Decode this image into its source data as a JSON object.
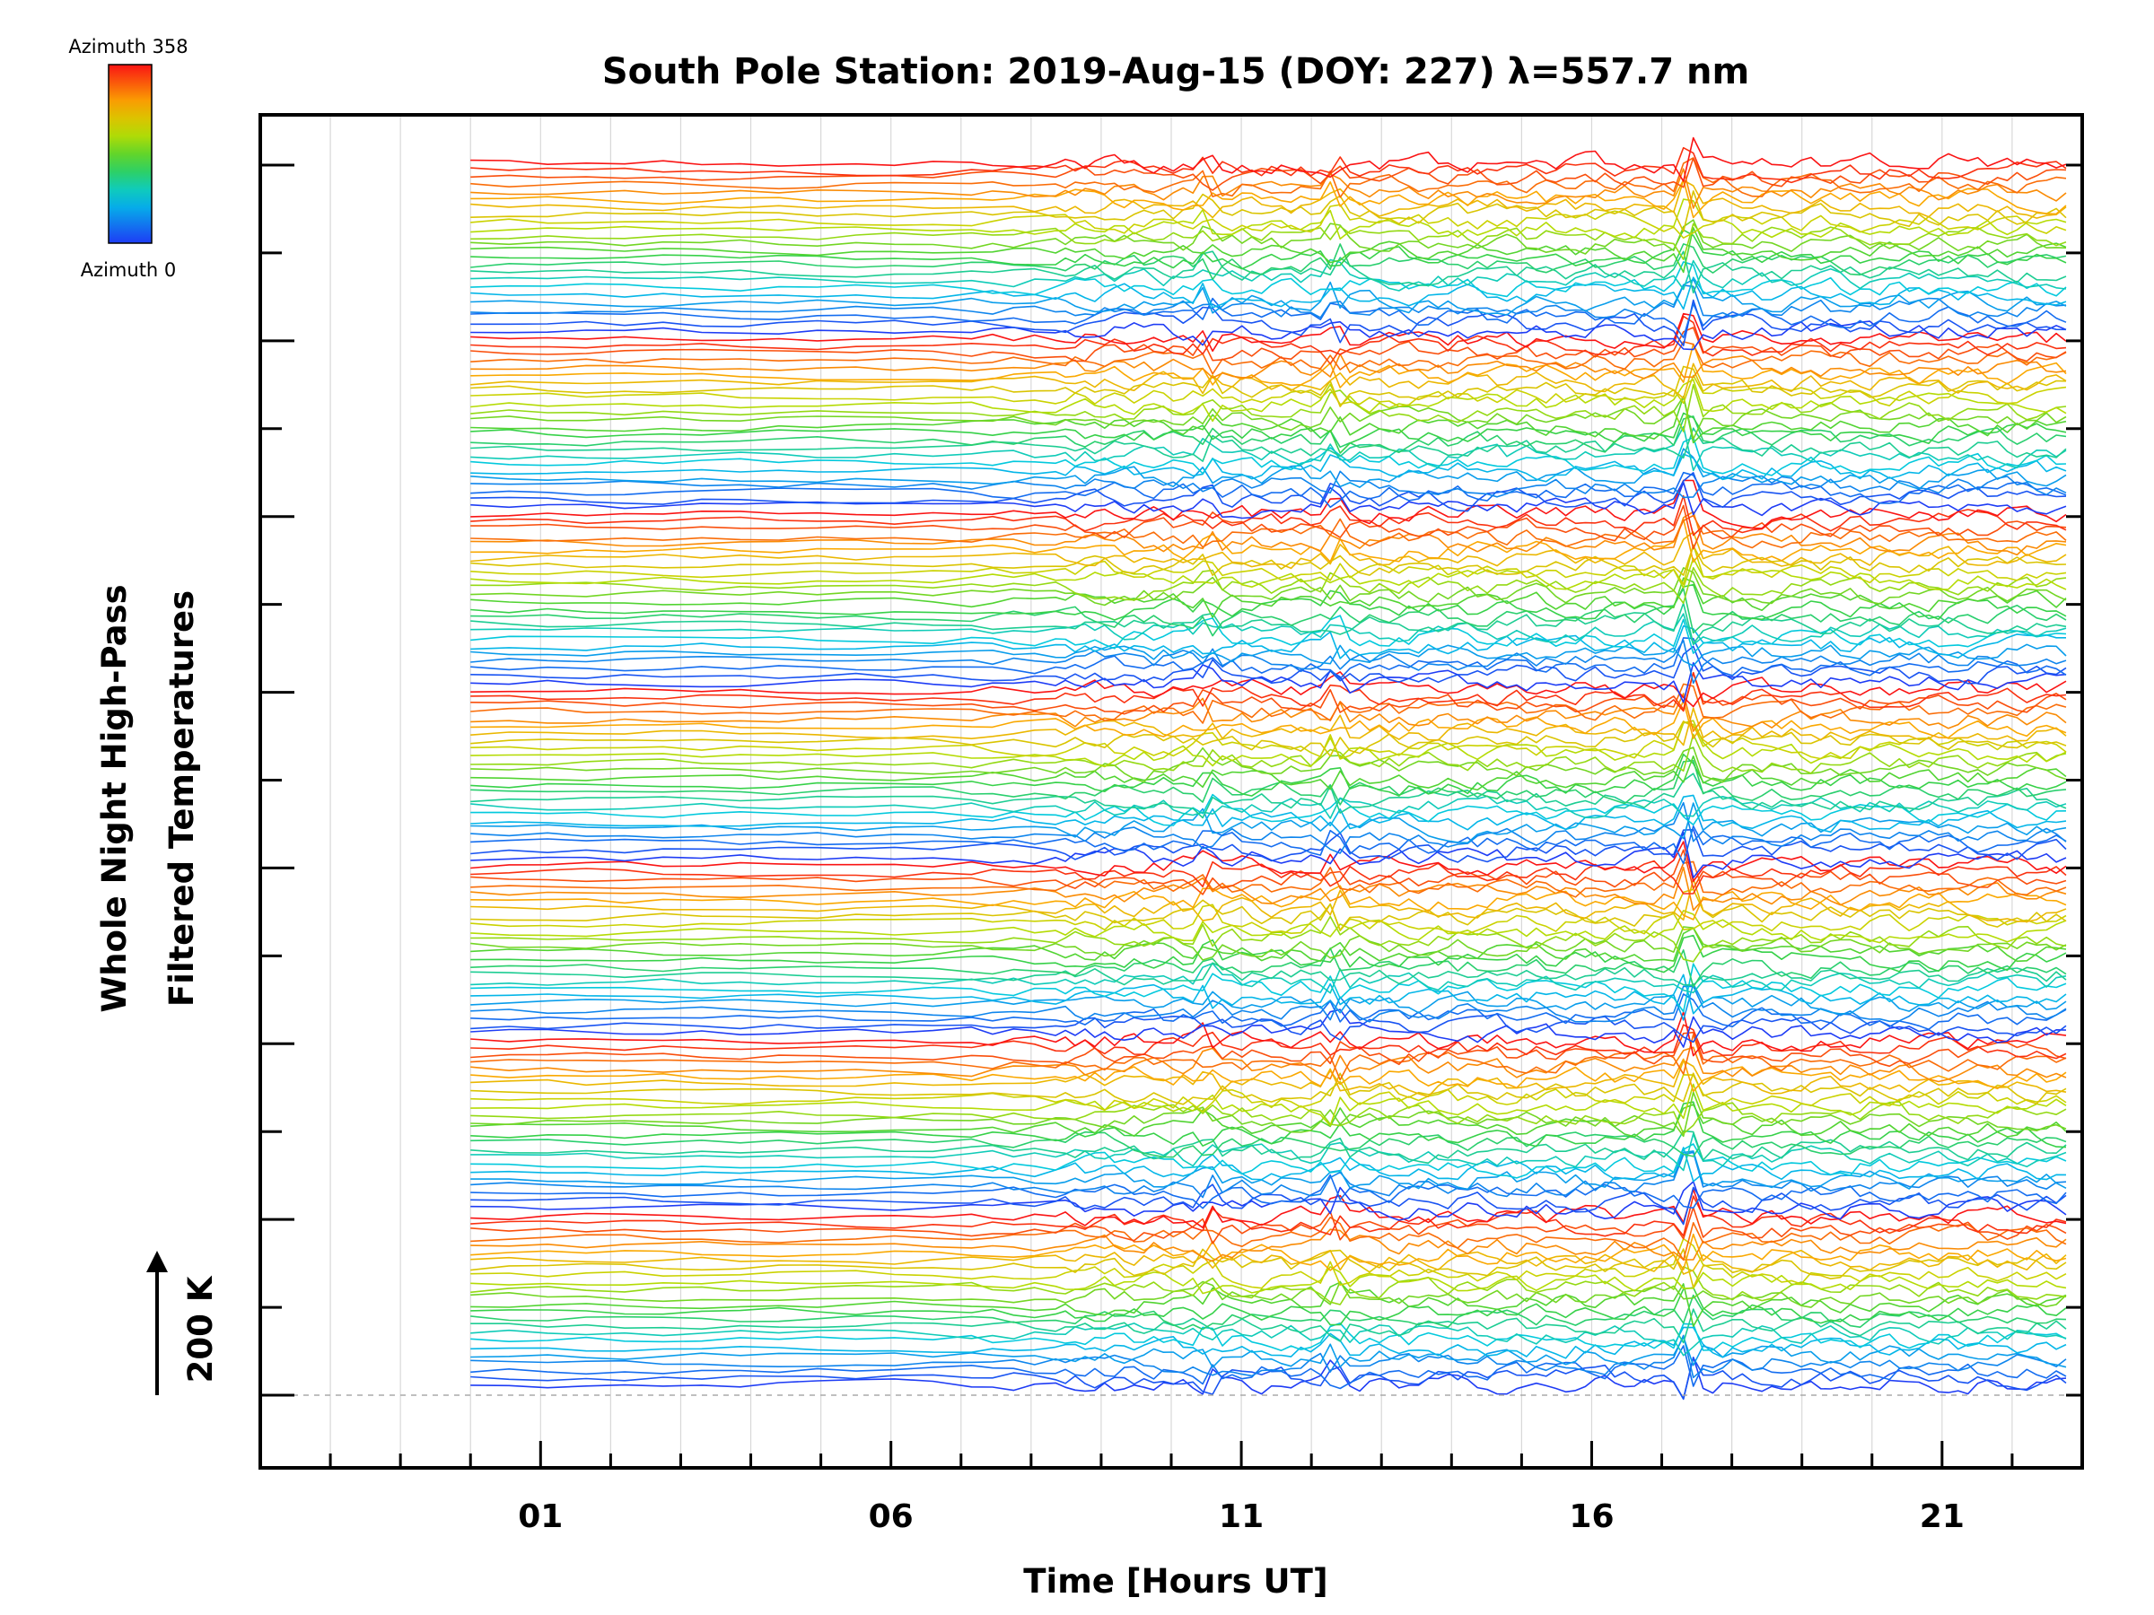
{
  "chart_data": {
    "type": "line",
    "title": "South Pole Station: 2019-Aug-15 (DOY: 227) λ=557.7 nm",
    "xlabel": "Time [Hours UT]",
    "ylabel_lines": [
      "Whole Night High-Pass",
      "Filtered Temperatures"
    ],
    "xlim": [
      -3,
      23
    ],
    "x_ticks": [
      {
        "value": 1,
        "label": "01"
      },
      {
        "value": 6,
        "label": "06"
      },
      {
        "value": 11,
        "label": "11"
      },
      {
        "value": 16,
        "label": "16"
      },
      {
        "value": 21,
        "label": "21"
      }
    ],
    "y_ticks_count": 15,
    "offset_step_label": "200 K",
    "colorbar": {
      "top_label": "Azimuth 358",
      "bottom_label": "Azimuth 0",
      "min": 0,
      "max": 358,
      "colormap": "rainbow"
    },
    "series_groups": 7,
    "series_per_group": 24,
    "series_start_hour": 0,
    "series_end_hour": 22.9,
    "vertical_gridlines": "hourly",
    "baseline": "dashed"
  }
}
